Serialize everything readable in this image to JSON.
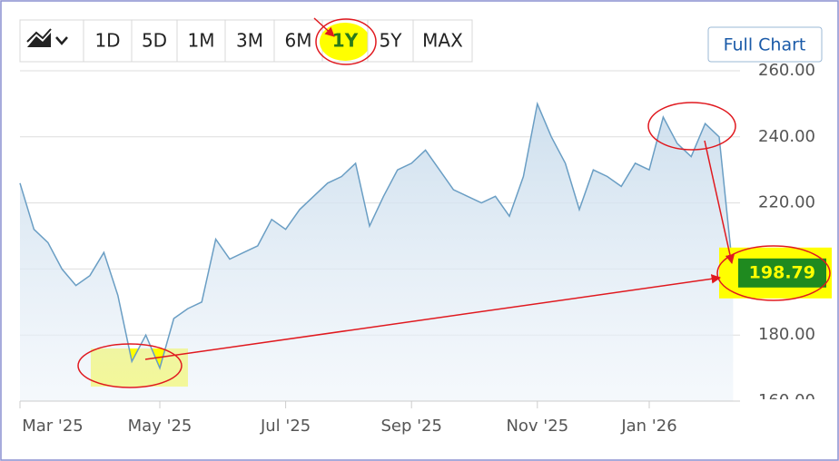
{
  "chart_data": {
    "type": "area",
    "range_buttons": [
      "1D",
      "5D",
      "1M",
      "3M",
      "6M",
      "1Y",
      "5Y",
      "MAX"
    ],
    "selected_range": "1Y",
    "full_chart_button": "Full Chart",
    "categories": [
      "Mar '25",
      null,
      null,
      null,
      null,
      null,
      null,
      null,
      null,
      null,
      "May '25",
      null,
      null,
      null,
      null,
      null,
      null,
      null,
      null,
      "Jul '25",
      null,
      null,
      null,
      null,
      null,
      null,
      null,
      null,
      "Sep '25",
      null,
      null,
      null,
      null,
      null,
      null,
      null,
      null,
      "Nov '25",
      null,
      null,
      null,
      null,
      null,
      null,
      null,
      "Jan '26",
      null,
      null,
      null,
      null,
      null,
      null
    ],
    "values": [
      226,
      212,
      208,
      200,
      195,
      198,
      205,
      192,
      172,
      180,
      170,
      185,
      188,
      190,
      209,
      203,
      205,
      207,
      215,
      212,
      218,
      222,
      226,
      228,
      232,
      213,
      222,
      230,
      232,
      236,
      230,
      224,
      222,
      220,
      222,
      216,
      228,
      250,
      240,
      232,
      218,
      230,
      228,
      225,
      232,
      230,
      246,
      238,
      234,
      244,
      240,
      198.79
    ],
    "color": "#6a9ec4",
    "ylim": [
      160,
      260
    ],
    "yticks": [
      {
        "value": 160,
        "label": "160.00"
      },
      {
        "value": 180,
        "label": "180.00"
      },
      {
        "value": 200,
        "label": "200.00"
      },
      {
        "value": 220,
        "label": "220.00"
      },
      {
        "value": 240,
        "label": "240.00"
      },
      {
        "value": 260,
        "label": "260.00"
      }
    ],
    "grid": true
  }
}
